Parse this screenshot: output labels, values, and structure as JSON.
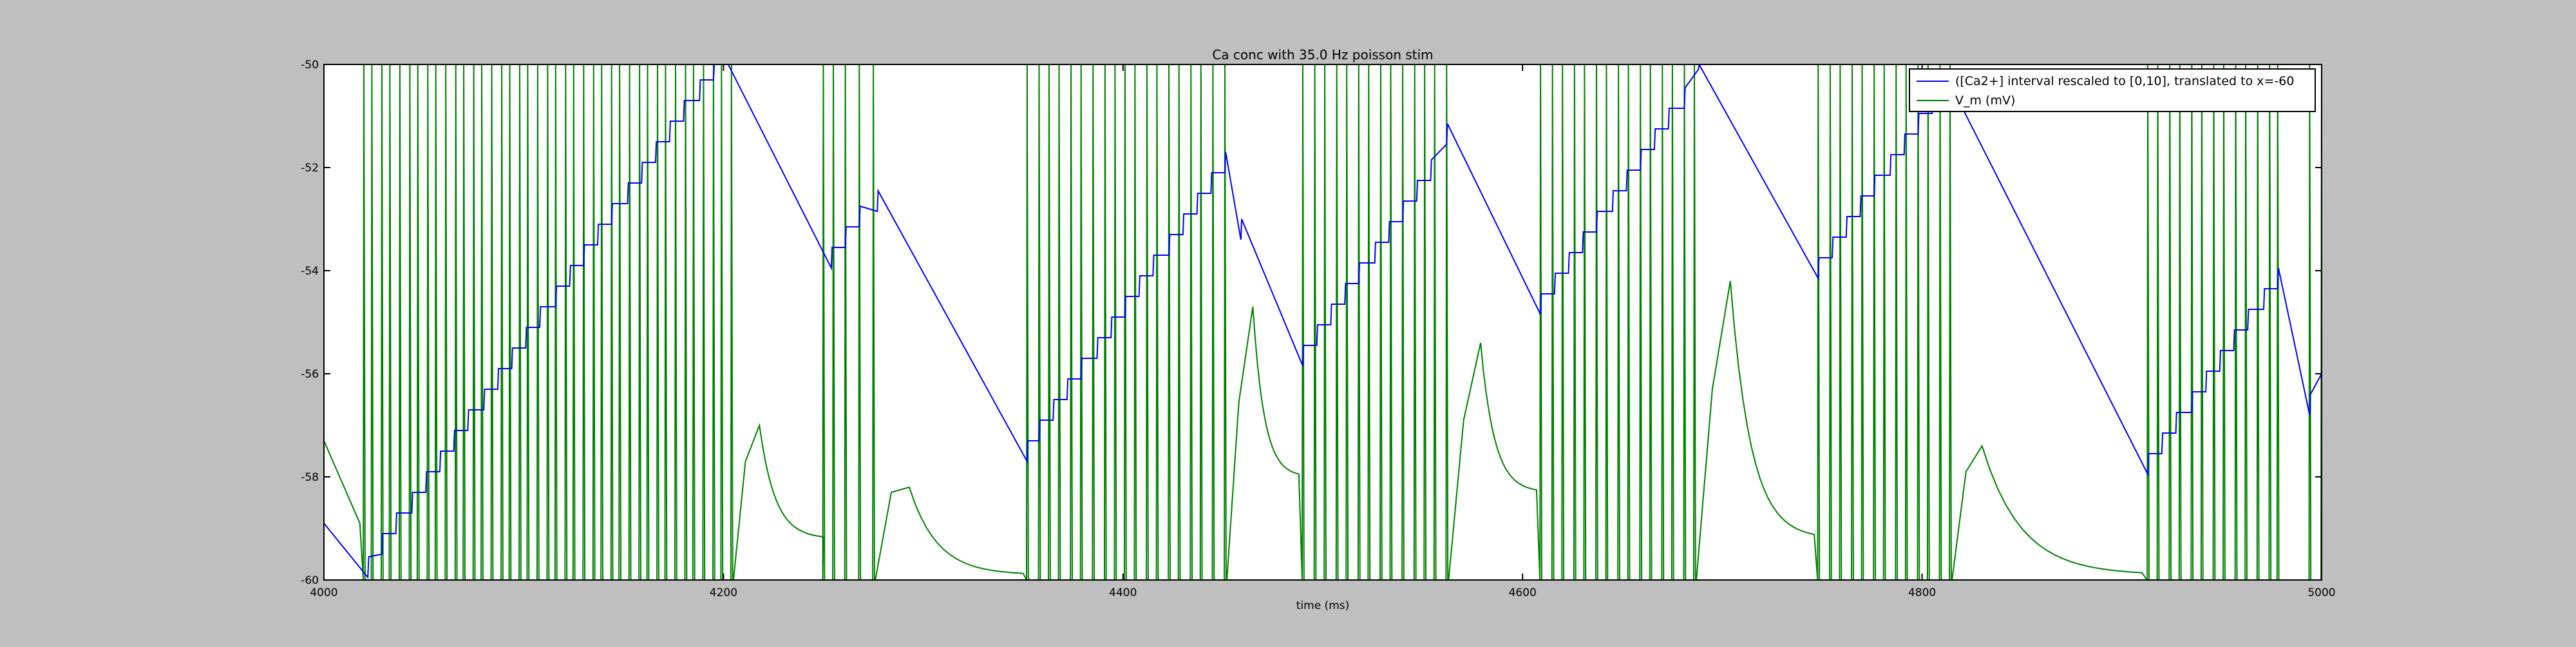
{
  "chart_data": {
    "type": "line",
    "title": "Ca conc with 35.0 Hz poisson stim",
    "xlabel": "time (ms)",
    "ylabel": "",
    "xlim": [
      4000,
      5000
    ],
    "ylim": [
      -60,
      -50
    ],
    "x_ticks": [
      4000,
      4200,
      4400,
      4600,
      4800,
      5000
    ],
    "y_ticks": [
      -60,
      -58,
      -56,
      -54,
      -52,
      -50
    ],
    "grid": false,
    "legend_position": "top-right",
    "series": [
      {
        "name": "([Ca2+] interval rescaled to [0,10], translated to x=-60",
        "color": "#0000ff",
        "spike_times": [
          4022,
          4029,
          4036,
          4044,
          4051,
          4058,
          4065,
          4072,
          4080,
          4087,
          4094,
          4101,
          4108,
          4116,
          4123,
          4130,
          4137,
          4144,
          4152,
          4159,
          4166,
          4173,
          4180,
          4188,
          4195,
          4202,
          4254,
          4261,
          4268,
          4277,
          4352,
          4358,
          4365,
          4372,
          4379,
          4387,
          4394,
          4401,
          4408,
          4415,
          4423,
          4430,
          4437,
          4444,
          4451,
          4459,
          4490,
          4497,
          4504,
          4511,
          4518,
          4526,
          4533,
          4540,
          4547,
          4554,
          4562,
          4609,
          4616,
          4623,
          4630,
          4637,
          4645,
          4652,
          4659,
          4666,
          4673,
          4681,
          4688,
          4748,
          4755,
          4762,
          4769,
          4776,
          4784,
          4791,
          4798,
          4805,
          4812,
          4913,
          4920,
          4927,
          4935,
          4942,
          4949,
          4956,
          4963,
          4971,
          4978,
          4994,
          5000
        ],
        "trough_values": [
          -59.95,
          -59.5,
          -59.1,
          -58.7,
          -58.3,
          -57.9,
          -57.5,
          -57.1,
          -56.7,
          -56.3,
          -55.9,
          -55.5,
          -55.1,
          -54.7,
          -54.3,
          -53.9,
          -53.5,
          -53.1,
          -52.7,
          -52.3,
          -51.9,
          -51.5,
          -51.1,
          -50.7,
          -50.3,
          -49.9,
          -53.95,
          -53.55,
          -53.15,
          -52.85,
          -57.7,
          -57.3,
          -56.9,
          -56.5,
          -56.1,
          -55.7,
          -55.3,
          -54.9,
          -54.5,
          -54.1,
          -53.7,
          -53.3,
          -52.9,
          -52.5,
          -52.1,
          -53.4,
          -55.85,
          -55.45,
          -55.05,
          -54.65,
          -54.25,
          -53.85,
          -53.45,
          -53.05,
          -52.65,
          -52.25,
          -51.55,
          -54.85,
          -54.45,
          -54.05,
          -53.65,
          -53.25,
          -52.85,
          -52.45,
          -52.05,
          -51.65,
          -51.25,
          -50.85,
          -50.1,
          -54.15,
          -53.75,
          -53.35,
          -52.95,
          -52.55,
          -52.15,
          -51.75,
          -51.35,
          -50.95,
          -50.65,
          -57.95,
          -57.55,
          -57.15,
          -56.75,
          -56.35,
          -55.95,
          -55.55,
          -55.15,
          -54.75,
          -54.35,
          -56.8,
          -56.0
        ],
        "start": {
          "x": 4000,
          "y": -58.9
        },
        "decay_rate_per_ms": 0.0173
      },
      {
        "name": "V_m (mV)",
        "color": "#008000",
        "spike_times": [
          4020,
          4024,
          4029,
          4033,
          4038,
          4043,
          4047,
          4052,
          4056,
          4061,
          4066,
          4070,
          4075,
          4079,
          4084,
          4089,
          4093,
          4098,
          4102,
          4107,
          4112,
          4116,
          4121,
          4125,
          4130,
          4135,
          4139,
          4144,
          4148,
          4153,
          4158,
          4162,
          4167,
          4171,
          4176,
          4181,
          4185,
          4190,
          4195,
          4199,
          4204,
          4250,
          4255,
          4261,
          4268,
          4275,
          4290,
          4352,
          4358,
          4363,
          4368,
          4374,
          4379,
          4385,
          4391,
          4396,
          4401,
          4406,
          4412,
          4417,
          4423,
          4428,
          4434,
          4439,
          4445,
          4451,
          4490,
          4496,
          4501,
          4507,
          4512,
          4518,
          4523,
          4529,
          4534,
          4540,
          4546,
          4551,
          4556,
          4562,
          4609,
          4615,
          4620,
          4626,
          4631,
          4637,
          4642,
          4648,
          4653,
          4659,
          4664,
          4670,
          4675,
          4681,
          4686,
          4748,
          4754,
          4759,
          4765,
          4770,
          4776,
          4781,
          4787,
          4792,
          4798,
          4803,
          4809,
          4814,
          4913,
          4918,
          4924,
          4929,
          4935,
          4940,
          4946,
          4951,
          4957,
          4962,
          4968,
          4974,
          4978,
          4994,
          5000
        ],
        "bump_peaks": [
          {
            "x": 4218,
            "y": -57.0
          },
          {
            "x": 4293,
            "y": -58.2
          },
          {
            "x": 4465,
            "y": -54.7
          },
          {
            "x": 4579,
            "y": -55.4
          },
          {
            "x": 4704,
            "y": -54.2
          },
          {
            "x": 4830,
            "y": -57.4
          }
        ],
        "pre_burst_troughs": [
          {
            "x": 4018,
            "y": -58.9
          },
          {
            "x": 4250,
            "y": -59.2
          },
          {
            "x": 4350,
            "y": -59.9
          },
          {
            "x": 4488,
            "y": -58.0
          },
          {
            "x": 4607,
            "y": -58.3
          },
          {
            "x": 4746,
            "y": -59.2
          },
          {
            "x": 4910,
            "y": -59.9
          }
        ]
      }
    ]
  }
}
